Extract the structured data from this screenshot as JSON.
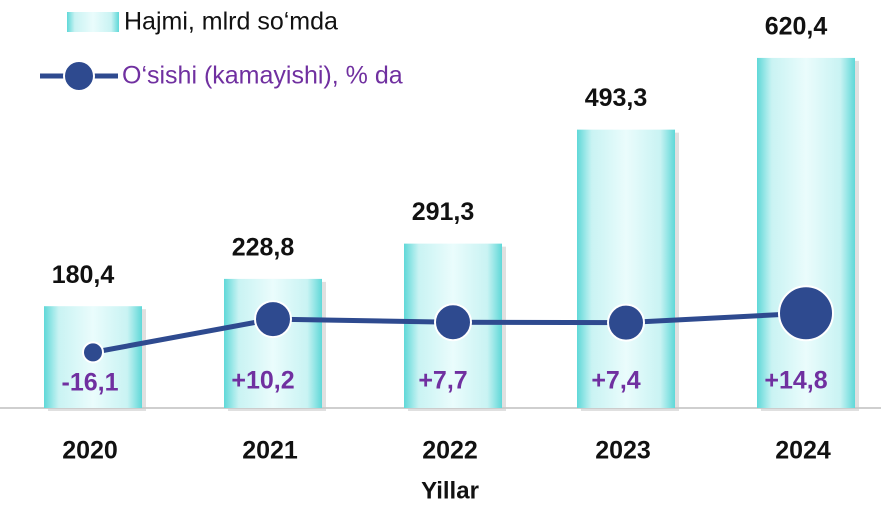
{
  "chart_data": {
    "type": "bar",
    "x_label": "Yillar",
    "categories": [
      "2020",
      "2021",
      "2022",
      "2023",
      "2024"
    ],
    "series": [
      {
        "name": "Hajmi, mlrd so‘mda",
        "type": "bar",
        "color": "#7fe3e3",
        "values": [
          180.4,
          228.8,
          291.3,
          493.3,
          620.4
        ],
        "value_labels": [
          "180,4",
          "228,8",
          "291,3",
          "493,3",
          "620,4"
        ]
      },
      {
        "name": "O‘sishi (kamayishi), % da",
        "type": "line",
        "axis": "y2",
        "color": "#2e4a8f",
        "values": [
          -16.1,
          10.2,
          7.7,
          7.4,
          14.8
        ],
        "value_labels": [
          "-16,1",
          "+10,2",
          "+7,7",
          "+7,4",
          "+14,8"
        ]
      }
    ],
    "ylim": [
      0,
      700
    ],
    "y2lim": [
      -60,
      90
    ]
  }
}
